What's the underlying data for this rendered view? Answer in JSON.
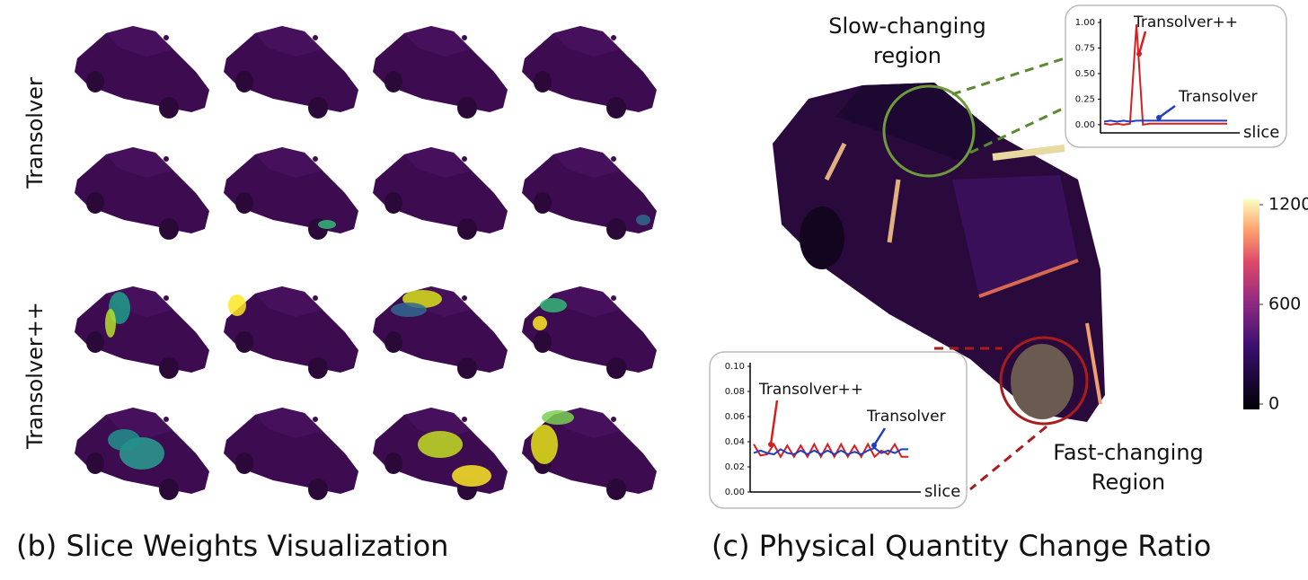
{
  "panel_b": {
    "caption": "(b) Slice Weights Visualization",
    "row_labels": [
      "Transolver",
      "Transolver++"
    ]
  },
  "panel_c": {
    "caption": "(c) Physical Quantity Change Ratio",
    "slow_label": [
      "Slow-changing",
      "region"
    ],
    "fast_label": [
      "Fast-changing",
      "Region"
    ],
    "colorbar": {
      "lim": [
        0,
        1200
      ],
      "ticks": [
        0,
        600,
        1200
      ]
    },
    "inset_slow": {
      "type": "line",
      "xlabel": "slice",
      "ylim": [
        -0.08,
        1.0
      ],
      "yticks": [
        {
          "value": 0,
          "label": "0.00"
        },
        {
          "value": 0.25,
          "label": "0.25"
        },
        {
          "value": 0.5,
          "label": "0.50"
        },
        {
          "value": 0.75,
          "label": "0.75"
        },
        {
          "value": 1.0,
          "label": "1.00"
        }
      ],
      "series": [
        {
          "name": "Transolver++",
          "color": "#d81e1e",
          "values": [
            0.01,
            0.0,
            0.01,
            0.0,
            0.01,
            0.98,
            0.0,
            0.01,
            0.01,
            0.01,
            0.01,
            0.01,
            0.01,
            0.01,
            0.01,
            0.01,
            0.01,
            0.01,
            0.01,
            0.01
          ]
        },
        {
          "name": "Transolver",
          "color": "#1f3fbf",
          "values": [
            0.03,
            0.04,
            0.03,
            0.04,
            0.03,
            0.04,
            0.04,
            0.04,
            0.04,
            0.04,
            0.04,
            0.04,
            0.04,
            0.04,
            0.04,
            0.04,
            0.04,
            0.04,
            0.04,
            0.04
          ]
        }
      ]
    },
    "inset_fast": {
      "type": "line",
      "xlabel": "slice",
      "ylim": [
        0,
        0.1
      ],
      "yticks": [
        {
          "value": 0,
          "label": "0.00"
        },
        {
          "value": 0.02,
          "label": "0.02"
        },
        {
          "value": 0.04,
          "label": "0.04"
        },
        {
          "value": 0.06,
          "label": "0.06"
        },
        {
          "value": 0.08,
          "label": "0.08"
        },
        {
          "value": 0.1,
          "label": "0.10"
        }
      ],
      "series": [
        {
          "name": "Transolver++",
          "color": "#d81e1e",
          "values": [
            0.038,
            0.029,
            0.03,
            0.038,
            0.028,
            0.037,
            0.028,
            0.037,
            0.028,
            0.038,
            0.028,
            0.038,
            0.028,
            0.038,
            0.028,
            0.037,
            0.028,
            0.038,
            0.028,
            0.033,
            0.03,
            0.038,
            0.028,
            0.028
          ]
        },
        {
          "name": "Transolver",
          "color": "#1f3fbf",
          "values": [
            0.031,
            0.033,
            0.031,
            0.03,
            0.034,
            0.031,
            0.03,
            0.033,
            0.03,
            0.033,
            0.03,
            0.033,
            0.03,
            0.033,
            0.03,
            0.032,
            0.03,
            0.033,
            0.035,
            0.031,
            0.033,
            0.031,
            0.034,
            0.034
          ]
        }
      ]
    }
  }
}
